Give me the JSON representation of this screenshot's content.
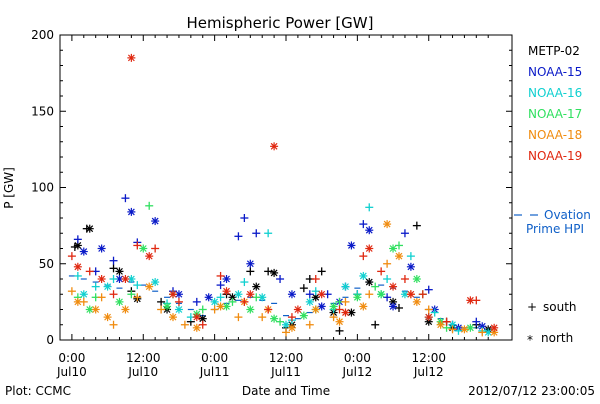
{
  "chart_data": {
    "type": "scatter",
    "title": "Hemispheric Power [GW]",
    "xlabel": "Date and Time",
    "ylabel": "P [GW]",
    "ylim": [
      0,
      200
    ],
    "yticks": [
      0,
      50,
      100,
      150,
      200
    ],
    "xlim_hours": [
      -2,
      74
    ],
    "xticks": [
      {
        "hour": 0,
        "line1": "0:00",
        "line2": "Jul10"
      },
      {
        "hour": 12,
        "line1": "12:00",
        "line2": "Jul10"
      },
      {
        "hour": 24,
        "line1": "0:00",
        "line2": "Jul11"
      },
      {
        "hour": 36,
        "line1": "12:00",
        "line2": "Jul11"
      },
      {
        "hour": 48,
        "line1": "0:00",
        "line2": "Jul12"
      },
      {
        "hour": 60,
        "line1": "12:00",
        "line2": "Jul12"
      }
    ],
    "legend_placement": "right",
    "series": [
      {
        "name": "METP-02",
        "color": "#000000",
        "south": [
          [
            0.5,
            61
          ],
          [
            2.5,
            73
          ],
          [
            7,
            47
          ],
          [
            10,
            32
          ],
          [
            15,
            25
          ],
          [
            20,
            12
          ],
          [
            26,
            30
          ],
          [
            30,
            45
          ],
          [
            33,
            45
          ],
          [
            36,
            8
          ],
          [
            39,
            34
          ],
          [
            40,
            40
          ],
          [
            42,
            45
          ],
          [
            45,
            6
          ],
          [
            48,
            30
          ],
          [
            51,
            10
          ],
          [
            55,
            21
          ],
          [
            58,
            75
          ],
          [
            63,
            12
          ],
          [
            68,
            10
          ]
        ],
        "north": [
          [
            1,
            62
          ],
          [
            3,
            73
          ],
          [
            8,
            45
          ],
          [
            11,
            27
          ],
          [
            16,
            20
          ],
          [
            22,
            14
          ],
          [
            27,
            28
          ],
          [
            31,
            35
          ],
          [
            34,
            44
          ],
          [
            37,
            10
          ],
          [
            41,
            28
          ],
          [
            44,
            18
          ],
          [
            47,
            18
          ],
          [
            50,
            38
          ],
          [
            54,
            25
          ],
          [
            60,
            12
          ],
          [
            64,
            8
          ],
          [
            70,
            7
          ]
        ]
      },
      {
        "name": "NOAA-15",
        "color": "#0a1ac8",
        "south": [
          [
            1,
            66
          ],
          [
            4,
            45
          ],
          [
            7,
            52
          ],
          [
            9,
            93
          ],
          [
            11,
            64
          ],
          [
            17,
            32
          ],
          [
            21,
            25
          ],
          [
            25,
            36
          ],
          [
            28,
            68
          ],
          [
            29,
            80
          ],
          [
            31,
            70
          ],
          [
            35,
            40
          ],
          [
            40,
            30
          ],
          [
            43,
            30
          ],
          [
            46,
            35
          ],
          [
            49,
            76
          ],
          [
            53,
            28
          ],
          [
            56,
            70
          ],
          [
            60,
            33
          ],
          [
            64,
            10
          ],
          [
            68,
            12
          ]
        ],
        "north": [
          [
            2,
            58
          ],
          [
            5,
            60
          ],
          [
            8,
            40
          ],
          [
            10,
            84
          ],
          [
            14,
            78
          ],
          [
            18,
            30
          ],
          [
            23,
            28
          ],
          [
            26,
            40
          ],
          [
            30,
            50
          ],
          [
            37,
            30
          ],
          [
            42,
            22
          ],
          [
            45,
            25
          ],
          [
            47,
            62
          ],
          [
            50,
            72
          ],
          [
            54,
            22
          ],
          [
            57,
            48
          ],
          [
            61,
            20
          ],
          [
            65,
            8
          ],
          [
            69,
            9
          ]
        ]
      },
      {
        "name": "NOAA-16",
        "color": "#10d0d0",
        "south": [
          [
            1,
            42
          ],
          [
            4,
            35
          ],
          [
            7,
            40
          ],
          [
            11,
            36
          ],
          [
            16,
            24
          ],
          [
            20,
            15
          ],
          [
            25,
            28
          ],
          [
            29,
            38
          ],
          [
            33,
            70
          ],
          [
            37,
            13
          ],
          [
            41,
            32
          ],
          [
            44,
            20
          ],
          [
            48,
            30
          ],
          [
            50,
            87
          ],
          [
            53,
            40
          ],
          [
            57,
            55
          ],
          [
            61,
            18
          ],
          [
            65,
            6
          ],
          [
            69,
            6
          ]
        ],
        "north": [
          [
            2,
            30
          ],
          [
            6,
            35
          ],
          [
            10,
            40
          ],
          [
            14,
            38
          ],
          [
            18,
            20
          ],
          [
            24,
            25
          ],
          [
            28,
            30
          ],
          [
            32,
            28
          ],
          [
            36,
            10
          ],
          [
            40,
            25
          ],
          [
            46,
            35
          ],
          [
            49,
            42
          ],
          [
            52,
            30
          ],
          [
            56,
            30
          ],
          [
            60,
            15
          ],
          [
            64,
            10
          ],
          [
            70,
            5
          ]
        ]
      },
      {
        "name": "NOAA-17",
        "color": "#30e060",
        "south": [
          [
            1,
            28
          ],
          [
            4,
            28
          ],
          [
            10,
            30
          ],
          [
            13,
            88
          ],
          [
            17,
            30
          ],
          [
            22,
            20
          ],
          [
            27,
            25
          ],
          [
            31,
            28
          ],
          [
            35,
            12
          ],
          [
            41,
            20
          ],
          [
            45,
            25
          ],
          [
            51,
            35
          ],
          [
            55,
            62
          ],
          [
            59,
            30
          ],
          [
            63,
            8
          ]
        ],
        "north": [
          [
            3,
            20
          ],
          [
            8,
            25
          ],
          [
            12,
            60
          ],
          [
            16,
            22
          ],
          [
            21,
            17
          ],
          [
            26,
            22
          ],
          [
            30,
            20
          ],
          [
            34,
            14
          ],
          [
            39,
            16
          ],
          [
            44,
            22
          ],
          [
            48,
            28
          ],
          [
            52,
            30
          ],
          [
            54,
            60
          ],
          [
            58,
            40
          ],
          [
            62,
            12
          ],
          [
            67,
            8
          ]
        ]
      },
      {
        "name": "NOAA-18",
        "color": "#f08c10",
        "south": [
          [
            0,
            32
          ],
          [
            2,
            25
          ],
          [
            5,
            28
          ],
          [
            7,
            10
          ],
          [
            11,
            28
          ],
          [
            15,
            20
          ],
          [
            19,
            10
          ],
          [
            24,
            20
          ],
          [
            28,
            15
          ],
          [
            32,
            15
          ],
          [
            36,
            5
          ],
          [
            40,
            10
          ],
          [
            44,
            15
          ],
          [
            46,
            25
          ],
          [
            50,
            30
          ],
          [
            53,
            50
          ],
          [
            57,
            30
          ],
          [
            60,
            20
          ],
          [
            64,
            7
          ],
          [
            69,
            5
          ]
        ],
        "north": [
          [
            1,
            25
          ],
          [
            4,
            20
          ],
          [
            6,
            15
          ],
          [
            9,
            20
          ],
          [
            13,
            35
          ],
          [
            17,
            15
          ],
          [
            21,
            8
          ],
          [
            25,
            22
          ],
          [
            29,
            25
          ],
          [
            33,
            20
          ],
          [
            37,
            8
          ],
          [
            41,
            20
          ],
          [
            45,
            12
          ],
          [
            49,
            22
          ],
          [
            53,
            76
          ],
          [
            55,
            55
          ],
          [
            58,
            25
          ],
          [
            62,
            10
          ],
          [
            66,
            7
          ],
          [
            71,
            5
          ]
        ]
      },
      {
        "name": "NOAA-19",
        "color": "#e02810",
        "south": [
          [
            0,
            55
          ],
          [
            3,
            45
          ],
          [
            7,
            30
          ],
          [
            11,
            62
          ],
          [
            14,
            60
          ],
          [
            18,
            25
          ],
          [
            22,
            10
          ],
          [
            25,
            42
          ],
          [
            29,
            25
          ],
          [
            33,
            20
          ],
          [
            37,
            15
          ],
          [
            41,
            40
          ],
          [
            45,
            20
          ],
          [
            49,
            55
          ],
          [
            52,
            45
          ],
          [
            56,
            40
          ],
          [
            59,
            30
          ],
          [
            63,
            12
          ],
          [
            68,
            26
          ]
        ],
        "north": [
          [
            1,
            48
          ],
          [
            5,
            40
          ],
          [
            9,
            40
          ],
          [
            10,
            185
          ],
          [
            13,
            55
          ],
          [
            17,
            30
          ],
          [
            21,
            15
          ],
          [
            26,
            32
          ],
          [
            30,
            30
          ],
          [
            34,
            127
          ],
          [
            38,
            20
          ],
          [
            42,
            30
          ],
          [
            46,
            18
          ],
          [
            50,
            60
          ],
          [
            54,
            35
          ],
          [
            57,
            30
          ],
          [
            60,
            15
          ],
          [
            67,
            26
          ],
          [
            71,
            8
          ]
        ]
      }
    ],
    "ovation": {
      "label_line1": "Ovation",
      "label_line2": "Prime HPI",
      "color": "#1060c8",
      "points": [
        [
          0,
          42
        ],
        [
          2,
          40
        ],
        [
          4,
          38
        ],
        [
          6,
          36
        ],
        [
          8,
          34
        ],
        [
          10,
          38
        ],
        [
          12,
          36
        ],
        [
          14,
          32
        ],
        [
          16,
          28
        ],
        [
          18,
          24
        ],
        [
          20,
          20
        ],
        [
          22,
          16
        ],
        [
          24,
          20
        ],
        [
          26,
          24
        ],
        [
          28,
          26
        ],
        [
          30,
          28
        ],
        [
          32,
          26
        ],
        [
          34,
          24
        ],
        [
          36,
          16
        ],
        [
          38,
          14
        ],
        [
          40,
          18
        ],
        [
          42,
          22
        ],
        [
          44,
          24
        ],
        [
          46,
          28
        ],
        [
          48,
          34
        ],
        [
          50,
          38
        ],
        [
          52,
          36
        ],
        [
          54,
          34
        ],
        [
          56,
          32
        ],
        [
          58,
          28
        ],
        [
          60,
          20
        ],
        [
          62,
          14
        ],
        [
          64,
          10
        ],
        [
          66,
          8
        ],
        [
          68,
          8
        ],
        [
          70,
          7
        ]
      ]
    },
    "marker_legend": {
      "south": "south",
      "north": "north",
      "south_glyph": "+",
      "north_glyph": "*"
    }
  },
  "footer": {
    "plot_credit": "Plot: CCMC",
    "timestamp": "2012/07/12 23:00:05"
  }
}
